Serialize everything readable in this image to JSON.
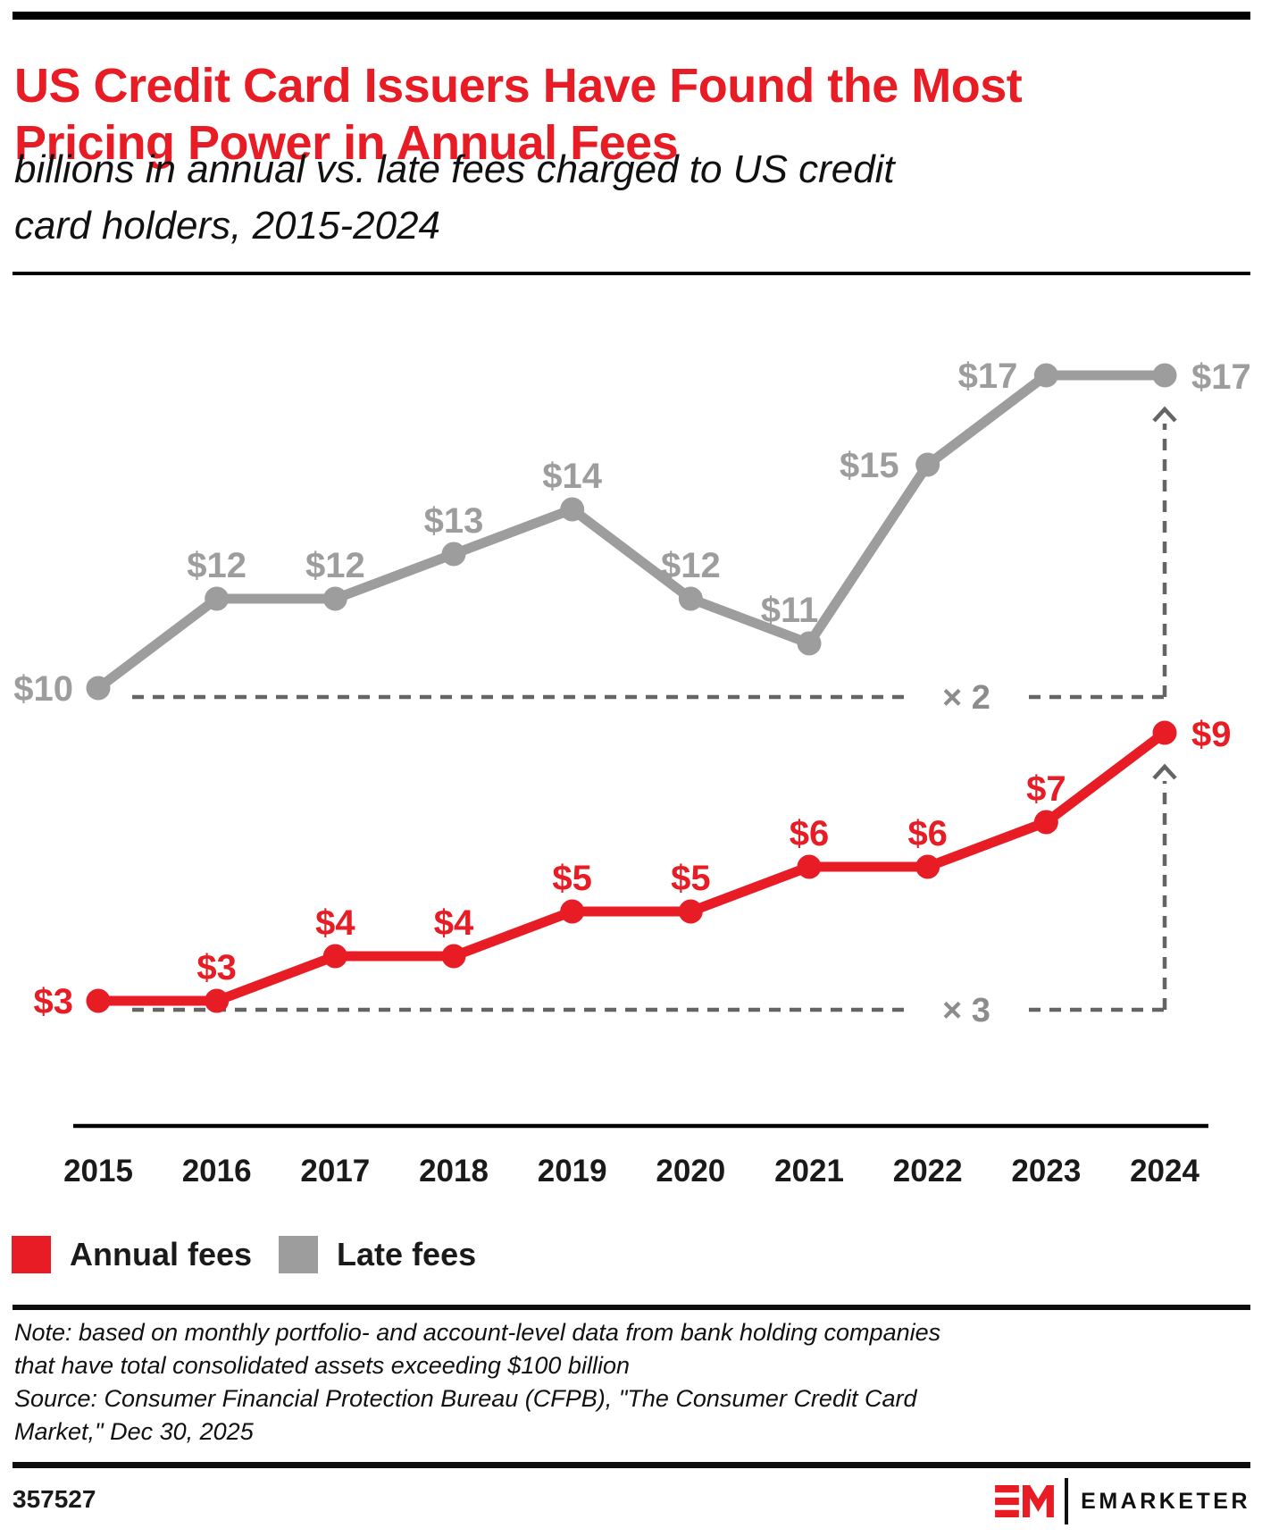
{
  "theme": {
    "accent_red": "#e81c24",
    "series_gray": "#9d9d9d",
    "guide_gray": "#646464",
    "multiplier_gray": "#8c8c8c",
    "text_black": "#1a1a1a"
  },
  "chart_data": {
    "type": "line",
    "title": "US Credit Card Issuers Have Found the Most\nPricing Power in Annual Fees",
    "subtitle": "billions in annual vs. late fees charged to US credit\ncard holders, 2015-2024",
    "x": [
      2015,
      2016,
      2017,
      2018,
      2019,
      2020,
      2021,
      2022,
      2023,
      2024
    ],
    "value_prefix": "$",
    "units": "billions",
    "grid": false,
    "y_axis_shown": false,
    "legend_position": "bottom-left",
    "series": [
      {
        "name": "Annual fees",
        "color": "#e81c24",
        "values": [
          3,
          3,
          4,
          4,
          5,
          5,
          6,
          6,
          7,
          9
        ],
        "labels": [
          "$3",
          "$3",
          "$4",
          "$4",
          "$5",
          "$5",
          "$6",
          "$6",
          "$7",
          "$9"
        ],
        "label_pos": [
          "left",
          "above",
          "above",
          "above",
          "above",
          "above",
          "above",
          "above",
          "above",
          "right"
        ]
      },
      {
        "name": "Late fees",
        "color": "#9d9d9d",
        "values": [
          10,
          12,
          12,
          13,
          14,
          12,
          11,
          15,
          17,
          17
        ],
        "labels": [
          "$10",
          "$12",
          "$12",
          "$13",
          "$14",
          "$12",
          "$11",
          "$15",
          "$17",
          "$17"
        ],
        "label_pos": [
          "left",
          "above",
          "above",
          "above",
          "above",
          "above",
          "above-left",
          "side-left",
          "side-left",
          "right"
        ]
      }
    ],
    "annotations": [
      {
        "label": "× 2",
        "series_index": 1,
        "baseline_year": 2015,
        "arrow_year": 2024
      },
      {
        "label": "× 3",
        "series_index": 0,
        "baseline_year": 2015,
        "arrow_year": 2024
      }
    ]
  },
  "legend": {
    "items": [
      {
        "label": "Annual fees",
        "color": "#e81c24"
      },
      {
        "label": "Late fees",
        "color": "#9d9d9d"
      }
    ]
  },
  "footnote": {
    "note": "Note: based on monthly portfolio- and account-level data from bank holding companies\nthat have total consolidated assets exceeding $100 billion",
    "source": "Source: Consumer Financial Protection Bureau (CFPB), \"The Consumer Credit Card\nMarket,\" Dec 30, 2025"
  },
  "footer": {
    "chart_id": "357527",
    "logo": "EM",
    "brand": "EMARKETER"
  }
}
